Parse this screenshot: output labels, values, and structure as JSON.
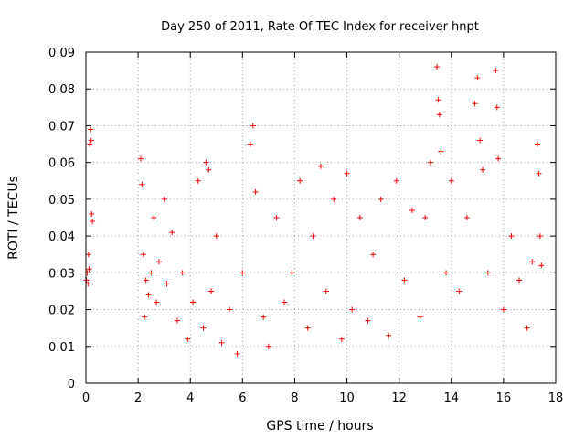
{
  "chart_data": {
    "type": "scatter",
    "title": "Day 250 of 2011, Rate Of TEC Index for receiver hnpt",
    "xlabel": "GPS time / hours",
    "ylabel": "ROTI / TECUs",
    "xlim": [
      0,
      18
    ],
    "ylim": [
      0,
      0.09
    ],
    "x_ticks": [
      0,
      2,
      4,
      6,
      8,
      10,
      12,
      14,
      16,
      18
    ],
    "y_ticks": [
      0,
      0.01,
      0.02,
      0.03,
      0.04,
      0.05,
      0.06,
      0.07,
      0.08,
      0.09
    ],
    "x_tick_labels": [
      "0",
      "2",
      "4",
      "6",
      "8",
      "10",
      "12",
      "14",
      "16",
      "18"
    ],
    "y_tick_labels": [
      "0",
      "0.01",
      "0.02",
      "0.03",
      "0.04",
      "0.05",
      "0.06",
      "0.07",
      "0.08",
      "0.09"
    ],
    "grid": true,
    "marker": "+",
    "color": "#ff0000",
    "series": [
      {
        "points": [
          [
            0.02,
            0.028
          ],
          [
            0.05,
            0.03
          ],
          [
            0.08,
            0.027
          ],
          [
            0.1,
            0.035
          ],
          [
            0.12,
            0.031
          ],
          [
            0.15,
            0.065
          ],
          [
            0.18,
            0.069
          ],
          [
            0.2,
            0.066
          ],
          [
            0.22,
            0.046
          ],
          [
            0.25,
            0.044
          ],
          [
            2.1,
            0.061
          ],
          [
            2.15,
            0.054
          ],
          [
            2.2,
            0.035
          ],
          [
            2.25,
            0.018
          ],
          [
            2.3,
            0.028
          ],
          [
            2.4,
            0.024
          ],
          [
            2.5,
            0.03
          ],
          [
            2.6,
            0.045
          ],
          [
            2.7,
            0.022
          ],
          [
            2.8,
            0.033
          ],
          [
            3.0,
            0.05
          ],
          [
            3.1,
            0.027
          ],
          [
            3.3,
            0.041
          ],
          [
            3.5,
            0.017
          ],
          [
            3.7,
            0.03
          ],
          [
            3.9,
            0.012
          ],
          [
            4.1,
            0.022
          ],
          [
            4.3,
            0.055
          ],
          [
            4.5,
            0.015
          ],
          [
            4.6,
            0.06
          ],
          [
            4.7,
            0.058
          ],
          [
            4.8,
            0.025
          ],
          [
            5.0,
            0.04
          ],
          [
            5.2,
            0.011
          ],
          [
            5.5,
            0.02
          ],
          [
            5.8,
            0.008
          ],
          [
            6.0,
            0.03
          ],
          [
            6.3,
            0.065
          ],
          [
            6.4,
            0.07
          ],
          [
            6.5,
            0.052
          ],
          [
            6.8,
            0.018
          ],
          [
            7.0,
            0.01
          ],
          [
            7.3,
            0.045
          ],
          [
            7.6,
            0.022
          ],
          [
            7.9,
            0.03
          ],
          [
            8.2,
            0.055
          ],
          [
            8.5,
            0.015
          ],
          [
            8.7,
            0.04
          ],
          [
            9.0,
            0.059
          ],
          [
            9.2,
            0.025
          ],
          [
            9.5,
            0.05
          ],
          [
            9.8,
            0.012
          ],
          [
            10.0,
            0.057
          ],
          [
            10.2,
            0.02
          ],
          [
            10.5,
            0.045
          ],
          [
            10.8,
            0.017
          ],
          [
            11.0,
            0.035
          ],
          [
            11.3,
            0.05
          ],
          [
            11.6,
            0.013
          ],
          [
            11.9,
            0.055
          ],
          [
            12.2,
            0.028
          ],
          [
            12.5,
            0.047
          ],
          [
            12.8,
            0.018
          ],
          [
            13.0,
            0.045
          ],
          [
            13.2,
            0.06
          ],
          [
            13.45,
            0.086
          ],
          [
            13.5,
            0.077
          ],
          [
            13.55,
            0.073
          ],
          [
            13.6,
            0.063
          ],
          [
            13.8,
            0.03
          ],
          [
            14.0,
            0.055
          ],
          [
            14.3,
            0.025
          ],
          [
            14.6,
            0.045
          ],
          [
            14.9,
            0.076
          ],
          [
            15.0,
            0.083
          ],
          [
            15.1,
            0.066
          ],
          [
            15.2,
            0.058
          ],
          [
            15.4,
            0.03
          ],
          [
            15.7,
            0.085
          ],
          [
            15.75,
            0.075
          ],
          [
            15.8,
            0.061
          ],
          [
            16.0,
            0.02
          ],
          [
            16.3,
            0.04
          ],
          [
            16.6,
            0.028
          ],
          [
            16.9,
            0.015
          ],
          [
            17.1,
            0.033
          ],
          [
            17.3,
            0.065
          ],
          [
            17.35,
            0.057
          ],
          [
            17.4,
            0.04
          ],
          [
            17.45,
            0.032
          ]
        ]
      }
    ]
  }
}
